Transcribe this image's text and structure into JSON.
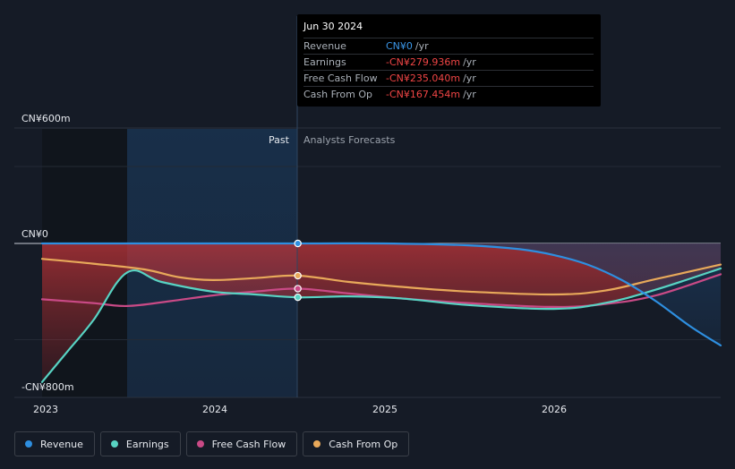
{
  "tooltip": {
    "date": "Jun 30 2024",
    "rows": [
      {
        "label": "Revenue",
        "value": "CN¥0",
        "unit": "/yr",
        "color": "#3b97e8"
      },
      {
        "label": "Earnings",
        "value": "-CN¥279.936m",
        "unit": "/yr",
        "color": "#f04545"
      },
      {
        "label": "Free Cash Flow",
        "value": "-CN¥235.040m",
        "unit": "/yr",
        "color": "#f04545"
      },
      {
        "label": "Cash From Op",
        "value": "-CN¥167.454m",
        "unit": "/yr",
        "color": "#f04545"
      }
    ]
  },
  "segments": {
    "past": "Past",
    "forecast": "Analysts Forecasts"
  },
  "legend": [
    {
      "label": "Revenue",
      "color": "#2e8fe0"
    },
    {
      "label": "Earnings",
      "color": "#58d3c3"
    },
    {
      "label": "Free Cash Flow",
      "color": "#c94a86"
    },
    {
      "label": "Cash From Op",
      "color": "#e8a95a"
    }
  ],
  "chart_data": {
    "type": "line",
    "y_tick_labels": [
      "CN¥600m",
      "CN¥0",
      "-CN¥800m"
    ],
    "x_tick_labels": [
      "2023",
      "2024",
      "2025",
      "2026"
    ],
    "ylim": [
      -800,
      600
    ],
    "xlim": [
      2023.0,
      2026.98
    ],
    "divider_x": 2024.5,
    "highlight_start_x": 2023.49,
    "series": [
      {
        "name": "Revenue",
        "color": "#2e8fe0",
        "points": [
          [
            2023.0,
            0
          ],
          [
            2024.5,
            0
          ],
          [
            2025.0,
            0
          ],
          [
            2025.5,
            -10
          ],
          [
            2025.8,
            -30
          ],
          [
            2026.0,
            -60
          ],
          [
            2026.2,
            -110
          ],
          [
            2026.4,
            -190
          ],
          [
            2026.6,
            -300
          ],
          [
            2026.8,
            -430
          ],
          [
            2026.98,
            -530
          ]
        ]
      },
      {
        "name": "Earnings",
        "color": "#58d3c3",
        "points": [
          [
            2023.0,
            -720
          ],
          [
            2023.15,
            -560
          ],
          [
            2023.3,
            -400
          ],
          [
            2023.5,
            -150
          ],
          [
            2023.7,
            -200
          ],
          [
            2024.0,
            -250
          ],
          [
            2024.25,
            -265
          ],
          [
            2024.5,
            -279.9
          ],
          [
            2024.8,
            -275
          ],
          [
            2025.1,
            -285
          ],
          [
            2025.5,
            -320
          ],
          [
            2026.0,
            -340
          ],
          [
            2026.3,
            -310
          ],
          [
            2026.6,
            -240
          ],
          [
            2026.98,
            -130
          ]
        ]
      },
      {
        "name": "Free Cash Flow",
        "color": "#c94a86",
        "points": [
          [
            2023.0,
            -290
          ],
          [
            2023.3,
            -310
          ],
          [
            2023.5,
            -325
          ],
          [
            2023.75,
            -300
          ],
          [
            2024.0,
            -270
          ],
          [
            2024.25,
            -250
          ],
          [
            2024.5,
            -235.0
          ],
          [
            2024.8,
            -260
          ],
          [
            2025.1,
            -285
          ],
          [
            2025.5,
            -310
          ],
          [
            2026.0,
            -330
          ],
          [
            2026.3,
            -315
          ],
          [
            2026.6,
            -270
          ],
          [
            2026.98,
            -160
          ]
        ]
      },
      {
        "name": "Cash From Op",
        "color": "#e8a95a",
        "points": [
          [
            2023.0,
            -80
          ],
          [
            2023.3,
            -105
          ],
          [
            2023.6,
            -135
          ],
          [
            2023.8,
            -175
          ],
          [
            2024.0,
            -190
          ],
          [
            2024.25,
            -180
          ],
          [
            2024.5,
            -167.5
          ],
          [
            2024.8,
            -200
          ],
          [
            2025.1,
            -225
          ],
          [
            2025.5,
            -250
          ],
          [
            2026.0,
            -265
          ],
          [
            2026.3,
            -245
          ],
          [
            2026.6,
            -185
          ],
          [
            2026.98,
            -110
          ]
        ]
      }
    ]
  }
}
